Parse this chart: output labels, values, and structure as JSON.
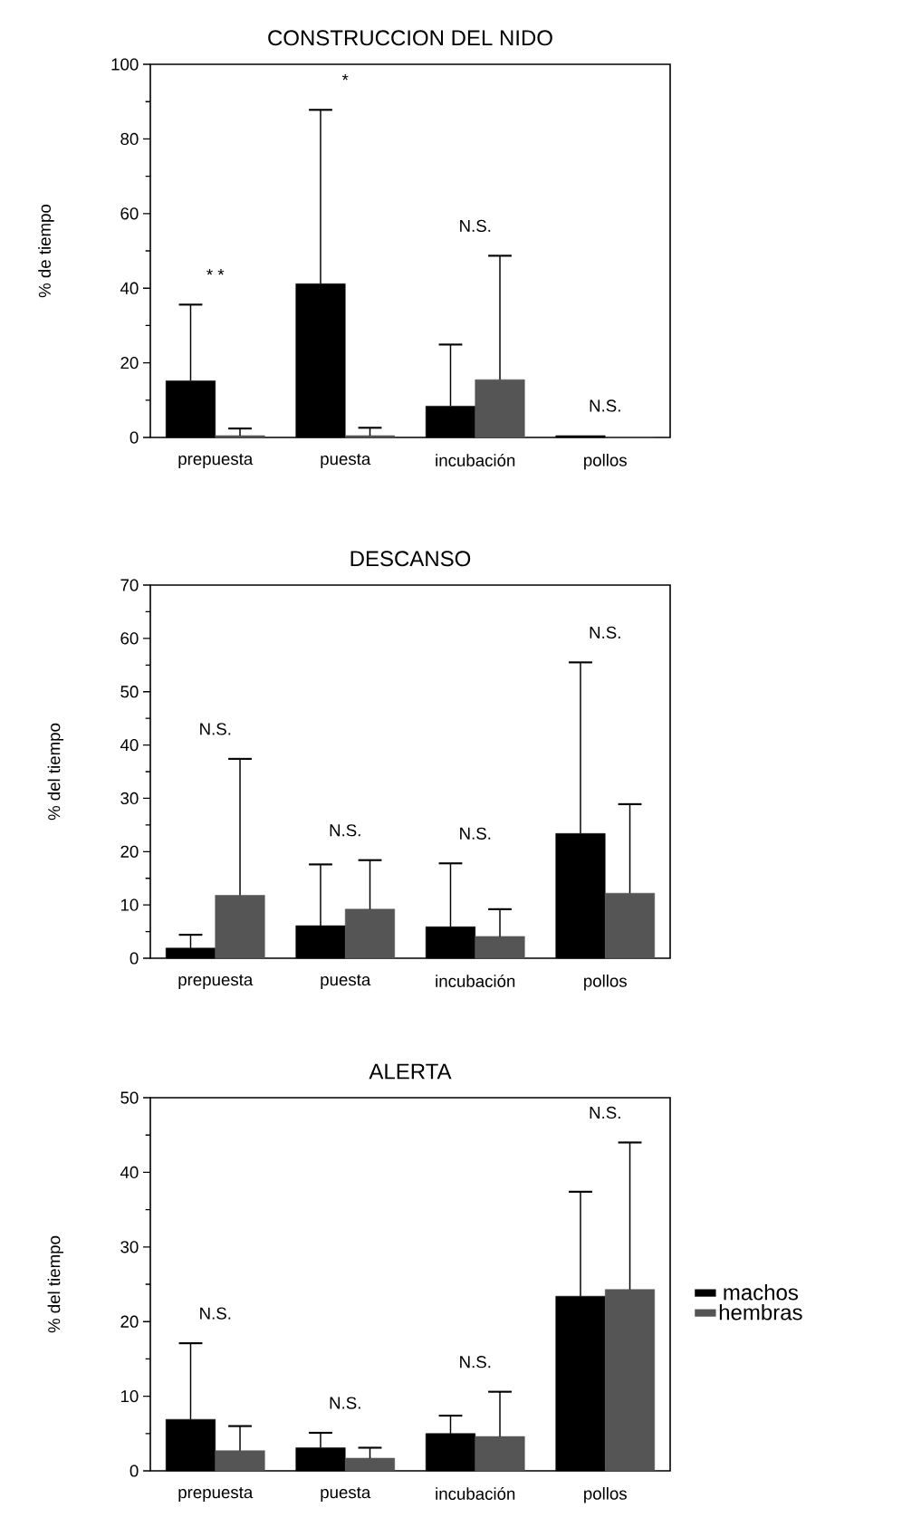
{
  "chart_data": [
    {
      "type": "bar",
      "title": "CONSTRUCCION DEL NIDO",
      "ylabel": "% de tiempo",
      "categories": [
        "prepuesta",
        "puesta",
        "incubación",
        "pollos"
      ],
      "series": [
        {
          "color": "#000000",
          "values": [
            15.2,
            41.2,
            8.4,
            0.5
          ],
          "errors": [
            [
              15.2,
              35.6
            ],
            [
              41.2,
              87.8
            ],
            [
              8.4,
              24.9
            ],
            null
          ]
        },
        {
          "color": "#555555",
          "values": [
            0.5,
            0.5,
            15.5,
            0
          ],
          "errors": [
            [
              0.5,
              2.4
            ],
            [
              0.5,
              2.6
            ],
            [
              15.5,
              48.7
            ],
            null
          ]
        }
      ],
      "ylim": [
        0,
        100
      ],
      "yticks": [
        0,
        20,
        40,
        60,
        80,
        100
      ],
      "annotations": [
        "* *",
        "*",
        "N.S.",
        "N.S."
      ]
    },
    {
      "type": "bar",
      "title": "DESCANSO",
      "ylabel": "% del tiempo",
      "categories": [
        "prepuesta",
        "puesta",
        "incubación",
        "pollos"
      ],
      "series": [
        {
          "color": "#000000",
          "values": [
            1.9,
            6.1,
            5.9,
            23.4
          ],
          "errors": [
            [
              1.9,
              4.4
            ],
            [
              6.1,
              17.6
            ],
            [
              5.9,
              17.8
            ],
            [
              23.4,
              55.5
            ]
          ]
        },
        {
          "color": "#555555",
          "values": [
            11.8,
            9.2,
            4.1,
            12.2
          ],
          "errors": [
            [
              11.8,
              37.4
            ],
            [
              9.2,
              18.4
            ],
            [
              4.1,
              9.2
            ],
            [
              12.2,
              28.9
            ]
          ]
        }
      ],
      "ylim": [
        0,
        70
      ],
      "yticks": [
        0,
        10,
        20,
        30,
        40,
        50,
        60,
        70
      ],
      "annotations": [
        "N.S.",
        "N.S.",
        "N.S.",
        "N.S."
      ]
    },
    {
      "type": "bar",
      "title": "ALERTA",
      "ylabel": "% del tiempo",
      "categories": [
        "prepuesta",
        "puesta",
        "incubación",
        "pollos"
      ],
      "series": [
        {
          "name": "machos",
          "color": "#000000",
          "values": [
            6.9,
            3.1,
            5.0,
            23.4
          ],
          "errors": [
            [
              6.9,
              17.1
            ],
            [
              3.1,
              5.1
            ],
            [
              5.0,
              7.4
            ],
            [
              23.4,
              37.4
            ]
          ]
        },
        {
          "name": "hembras",
          "color": "#555555",
          "values": [
            2.7,
            1.7,
            4.6,
            24.3
          ],
          "errors": [
            [
              2.7,
              6.0
            ],
            [
              1.7,
              3.1
            ],
            [
              4.6,
              10.6
            ],
            [
              24.3,
              44.0
            ]
          ]
        }
      ],
      "ylim": [
        0,
        50
      ],
      "yticks": [
        0,
        10,
        20,
        30,
        40,
        50
      ],
      "legend": "right",
      "annotations": [
        "N.S.",
        "N.S.",
        "N.S.",
        "N.S."
      ]
    }
  ]
}
